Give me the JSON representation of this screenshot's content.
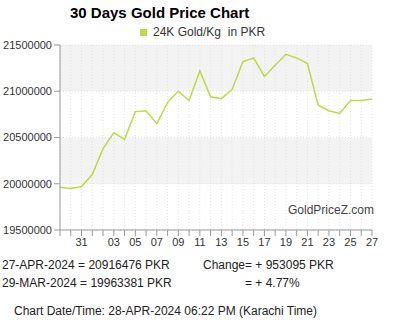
{
  "chart_data": {
    "type": "line",
    "title": "30 Days Gold Price Chart",
    "categories": [
      null,
      null,
      "31",
      null,
      null,
      "03",
      null,
      "05",
      null,
      "07",
      null,
      "09",
      null,
      "11",
      null,
      "13",
      null,
      "15",
      null,
      "17",
      null,
      "19",
      null,
      "21",
      null,
      "23",
      null,
      "25",
      null,
      "27"
    ],
    "series": [
      {
        "name": "24K Gold/Kg  in PKR",
        "color": "#bcd94a",
        "values": [
          19963381,
          19950000,
          19970000,
          20100000,
          20380000,
          20550000,
          20480000,
          20780000,
          20790000,
          20650000,
          20880000,
          21000000,
          20900000,
          21220000,
          20940000,
          20920000,
          21020000,
          21320000,
          21360000,
          21160000,
          21280000,
          21400000,
          21360000,
          21300000,
          20850000,
          20790000,
          20760000,
          20900000,
          20900000,
          20916476
        ]
      }
    ],
    "ylim": [
      19500000,
      21500000
    ],
    "yticks": [
      19500000,
      20000000,
      20500000,
      21000000,
      21500000
    ],
    "grid": true,
    "legend": "top",
    "watermark": "GoldPriceZ.com",
    "annotations": [
      "27-APR-2024 = 20916476 PKR",
      "Change",
      "= + 953095 PKR",
      "29-MAR-2024 = 19963381 PKR",
      "= + 4.77%",
      "Chart Date/Time: 28-APR-2024 06:22 PM (Karachi Time)"
    ]
  }
}
